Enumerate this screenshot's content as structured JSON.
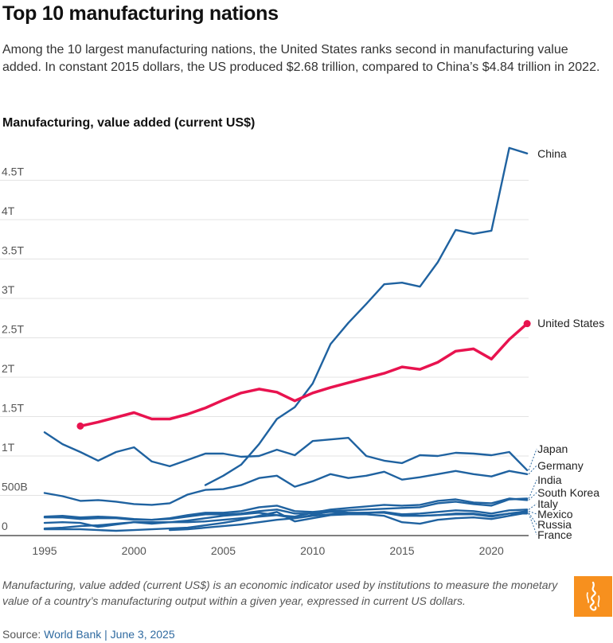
{
  "header": {
    "title": "Top 10 manufacturing nations",
    "subtitle": "Among the 10 largest manufacturing nations, the United States ranks second in manufacturing value added. In constant 2015 dollars, the US produced $2.68 trillion, compared to China’s $4.84 trillion in 2022."
  },
  "footer": {
    "note": "Manufacturing, value added (current US$) is an economic indicator used by institutions to measure the monetary value of a country’s manufacturing output within a given year, expressed in current US dollars.",
    "source_prefix": "Source: ",
    "source_link": "World Bank | June 3, 2025",
    "logo_icon": "al-jazeera-logo-icon",
    "logo_color": "#f7901e"
  },
  "chart_data": {
    "type": "line",
    "title": "Manufacturing, value added (current US$)",
    "xlabel": "",
    "ylabel": "",
    "xlim": [
      1995,
      2022
    ],
    "ylim": [
      0,
      4.9
    ],
    "grid": true,
    "legend": "direct-labels-right",
    "x_ticks": [
      1995,
      2000,
      2005,
      2010,
      2015,
      2020
    ],
    "y_ticks": [
      {
        "value": 0,
        "label": "0"
      },
      {
        "value": 0.5,
        "label": "500B"
      },
      {
        "value": 1,
        "label": "1T"
      },
      {
        "value": 1.5,
        "label": "1.5T"
      },
      {
        "value": 2,
        "label": "2T"
      },
      {
        "value": 2.5,
        "label": "2.5T"
      },
      {
        "value": 3,
        "label": "3T"
      },
      {
        "value": 3.5,
        "label": "3.5T"
      },
      {
        "value": 4,
        "label": "4T"
      },
      {
        "value": 4.5,
        "label": "4.5T"
      }
    ],
    "units": "trillion US$",
    "colors": {
      "highlight": "#e8134f",
      "default": "#1f62a0"
    },
    "series": [
      {
        "name": "China",
        "highlight": false,
        "start": 2004,
        "values": [
          0.63,
          0.75,
          0.89,
          1.15,
          1.47,
          1.62,
          1.92,
          2.42,
          2.69,
          2.93,
          3.18,
          3.2,
          3.15,
          3.46,
          3.87,
          3.82,
          3.86,
          4.91,
          4.84
        ]
      },
      {
        "name": "United States",
        "highlight": true,
        "start": 1997,
        "values": [
          1.38,
          1.43,
          1.49,
          1.55,
          1.47,
          1.47,
          1.53,
          1.61,
          1.71,
          1.8,
          1.85,
          1.81,
          1.7,
          1.8,
          1.87,
          1.93,
          1.99,
          2.05,
          2.13,
          2.1,
          2.19,
          2.33,
          2.36,
          2.23,
          2.48,
          2.68
        ]
      },
      {
        "name": "Japan",
        "highlight": false,
        "start": 1995,
        "values": [
          1.3,
          1.15,
          1.05,
          0.94,
          1.05,
          1.11,
          0.93,
          0.87,
          0.95,
          1.03,
          1.03,
          0.99,
          1.0,
          1.08,
          1.01,
          1.19,
          1.21,
          1.23,
          1.0,
          0.94,
          0.91,
          1.01,
          1.0,
          1.04,
          1.03,
          1.01,
          1.05,
          0.82
        ]
      },
      {
        "name": "Germany",
        "highlight": false,
        "start": 1995,
        "values": [
          0.53,
          0.49,
          0.43,
          0.44,
          0.42,
          0.39,
          0.38,
          0.4,
          0.51,
          0.57,
          0.58,
          0.63,
          0.72,
          0.75,
          0.61,
          0.68,
          0.77,
          0.72,
          0.75,
          0.8,
          0.7,
          0.73,
          0.77,
          0.81,
          0.77,
          0.74,
          0.81,
          0.77
        ]
      },
      {
        "name": "India",
        "highlight": false,
        "start": 2002,
        "values": [
          0.06,
          0.07,
          0.09,
          0.11,
          0.13,
          0.16,
          0.19,
          0.21,
          0.25,
          0.3,
          0.31,
          0.32,
          0.33,
          0.34,
          0.35,
          0.4,
          0.42,
          0.39,
          0.37,
          0.45,
          0.46
        ]
      },
      {
        "name": "South Korea",
        "highlight": false,
        "start": 1995,
        "values": [
          0.15,
          0.16,
          0.15,
          0.1,
          0.13,
          0.16,
          0.14,
          0.16,
          0.18,
          0.21,
          0.24,
          0.26,
          0.28,
          0.25,
          0.23,
          0.28,
          0.32,
          0.34,
          0.36,
          0.38,
          0.37,
          0.38,
          0.43,
          0.45,
          0.41,
          0.4,
          0.46,
          0.44
        ]
      },
      {
        "name": "Italy",
        "highlight": false,
        "start": 1995,
        "values": [
          0.23,
          0.24,
          0.22,
          0.23,
          0.22,
          0.2,
          0.19,
          0.21,
          0.25,
          0.28,
          0.28,
          0.3,
          0.35,
          0.37,
          0.3,
          0.29,
          0.31,
          0.28,
          0.28,
          0.29,
          0.26,
          0.27,
          0.29,
          0.31,
          0.3,
          0.27,
          0.31,
          0.32
        ]
      },
      {
        "name": "Mexico",
        "highlight": false,
        "start": 1995,
        "values": [
          0.08,
          0.09,
          0.11,
          0.12,
          0.14,
          0.16,
          0.16,
          0.16,
          0.16,
          0.17,
          0.19,
          0.21,
          0.23,
          0.25,
          0.21,
          0.24,
          0.26,
          0.27,
          0.28,
          0.28,
          0.26,
          0.24,
          0.25,
          0.27,
          0.27,
          0.24,
          0.27,
          0.3
        ]
      },
      {
        "name": "Russia",
        "highlight": false,
        "start": 1995,
        "values": [
          0.07,
          0.07,
          0.07,
          0.06,
          0.05,
          0.06,
          0.07,
          0.08,
          0.09,
          0.12,
          0.15,
          0.19,
          0.24,
          0.29,
          0.17,
          0.21,
          0.25,
          0.26,
          0.26,
          0.24,
          0.16,
          0.14,
          0.19,
          0.21,
          0.22,
          0.2,
          0.24,
          0.28
        ]
      },
      {
        "name": "France",
        "highlight": false,
        "start": 1995,
        "values": [
          0.22,
          0.22,
          0.2,
          0.21,
          0.21,
          0.19,
          0.19,
          0.2,
          0.23,
          0.26,
          0.26,
          0.27,
          0.3,
          0.32,
          0.27,
          0.27,
          0.29,
          0.27,
          0.28,
          0.28,
          0.24,
          0.24,
          0.25,
          0.26,
          0.26,
          0.23,
          0.27,
          0.27
        ]
      }
    ],
    "label_order": [
      "China",
      "United States",
      "Japan",
      "Germany",
      "India",
      "South Korea",
      "Italy",
      "Mexico",
      "Russia",
      "France"
    ]
  }
}
